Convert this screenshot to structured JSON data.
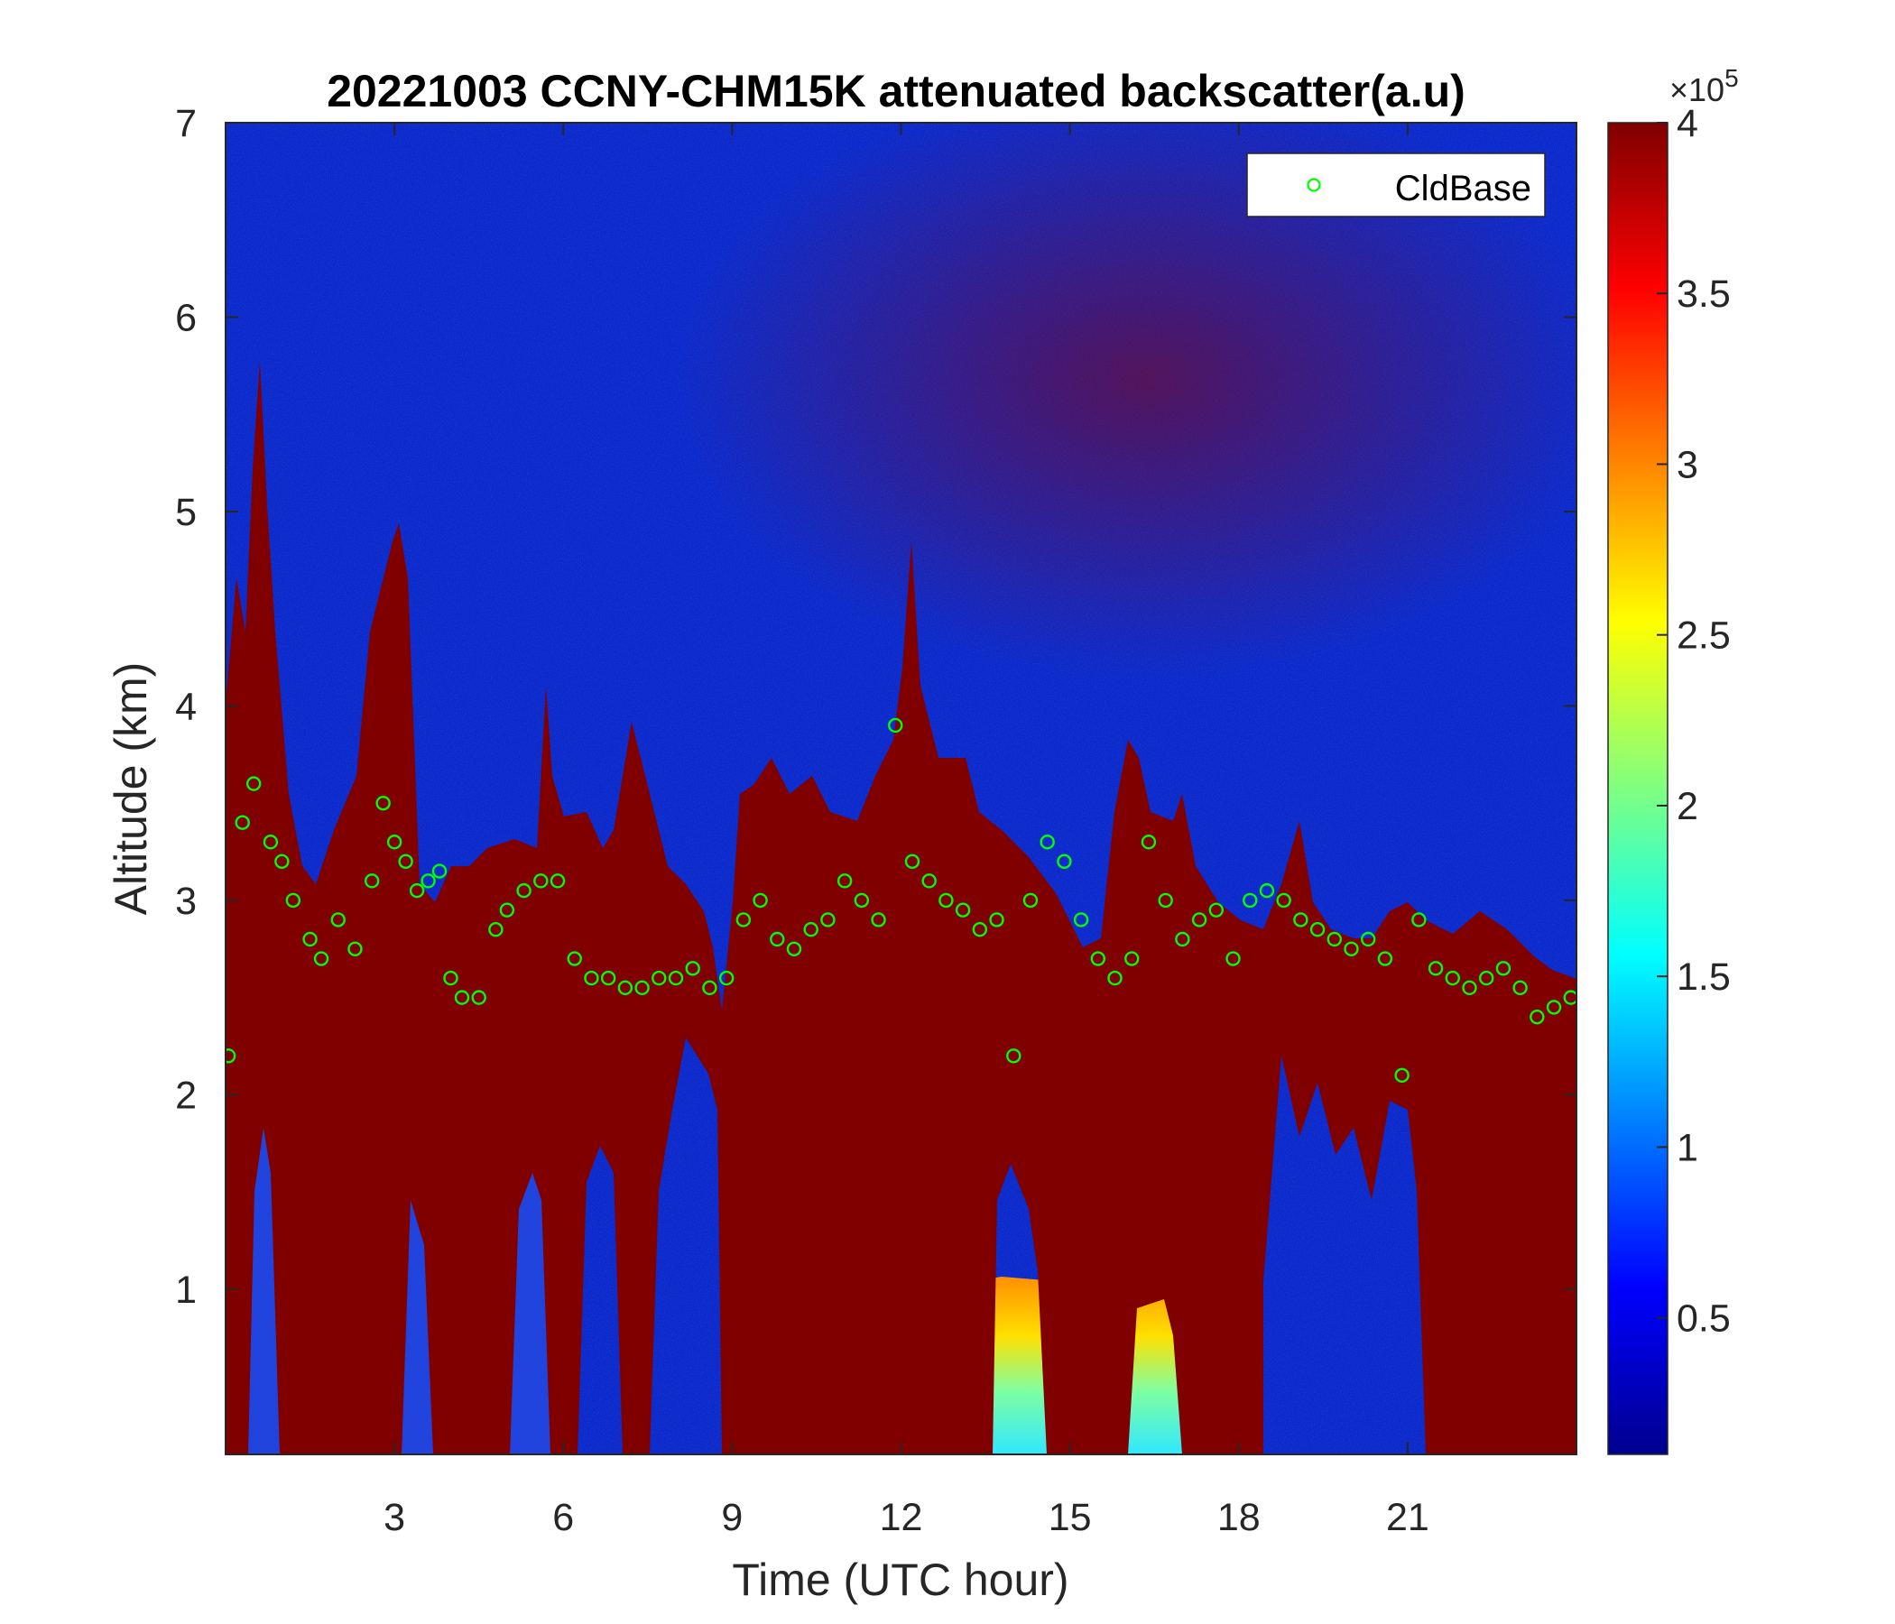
{
  "chart_data": {
    "type": "heatmap",
    "title": "20221003 CCNY-CHM15K attenuated backscatter(a.u)",
    "xlabel": "Time (UTC hour)",
    "ylabel": "Altitude (km)",
    "xlim": [
      0,
      24
    ],
    "ylim": [
      0.15,
      7
    ],
    "x_ticks": [
      "3",
      "6",
      "9",
      "12",
      "15",
      "18",
      "21"
    ],
    "y_ticks": [
      "1",
      "2",
      "3",
      "4",
      "5",
      "6",
      "7"
    ],
    "colorbar": {
      "colormap": "jet",
      "range": [
        0.1,
        4
      ],
      "ticks": [
        "0.5",
        "1",
        "1.5",
        "2",
        "2.5",
        "3",
        "3.5",
        "4"
      ],
      "multiplier_base": "×10",
      "multiplier_exp": "5"
    },
    "legend": {
      "location": "top-right",
      "entries": [
        "CldBase"
      ]
    },
    "series": [
      {
        "name": "CldBase",
        "marker": "circle",
        "color": "#00ff00",
        "x": [
          0.05,
          0.3,
          0.5,
          0.8,
          1.0,
          1.2,
          1.5,
          1.7,
          2.0,
          2.3,
          2.6,
          2.8,
          3.0,
          3.2,
          3.4,
          3.6,
          3.8,
          4.0,
          4.2,
          4.5,
          4.8,
          5.0,
          5.3,
          5.6,
          5.9,
          6.2,
          6.5,
          6.8,
          7.1,
          7.4,
          7.7,
          8.0,
          8.3,
          8.6,
          8.9,
          9.2,
          9.5,
          9.8,
          10.1,
          10.4,
          10.7,
          11.0,
          11.3,
          11.6,
          11.9,
          12.2,
          12.5,
          12.8,
          13.1,
          13.4,
          13.7,
          14.0,
          14.3,
          14.6,
          14.9,
          15.2,
          15.5,
          15.8,
          16.1,
          16.4,
          16.7,
          17.0,
          17.3,
          17.6,
          17.9,
          18.2,
          18.5,
          18.8,
          19.1,
          19.4,
          19.7,
          20.0,
          20.3,
          20.6,
          20.9,
          21.2,
          21.5,
          21.8,
          22.1,
          22.4,
          22.7,
          23.0,
          23.3,
          23.6,
          23.9
        ],
        "y": [
          2.2,
          3.4,
          3.6,
          3.3,
          3.2,
          3.0,
          2.8,
          2.7,
          2.9,
          2.75,
          3.1,
          3.5,
          3.3,
          3.2,
          3.05,
          3.1,
          3.15,
          2.6,
          2.5,
          2.5,
          2.85,
          2.95,
          3.05,
          3.1,
          3.1,
          2.7,
          2.6,
          2.6,
          2.55,
          2.55,
          2.6,
          2.6,
          2.65,
          2.55,
          2.6,
          2.9,
          3.0,
          2.8,
          2.75,
          2.85,
          2.9,
          3.1,
          3.0,
          2.9,
          3.9,
          3.2,
          3.1,
          3.0,
          2.95,
          2.85,
          2.9,
          2.2,
          3.0,
          3.3,
          3.2,
          2.9,
          2.7,
          2.6,
          2.7,
          3.3,
          3.0,
          2.8,
          2.9,
          2.95,
          2.7,
          3.0,
          3.05,
          3.0,
          2.9,
          2.85,
          2.8,
          2.75,
          2.8,
          2.7,
          2.1,
          2.9,
          2.65,
          2.6,
          2.55,
          2.6,
          2.65,
          2.55,
          2.4,
          2.45,
          2.5
        ]
      }
    ]
  }
}
